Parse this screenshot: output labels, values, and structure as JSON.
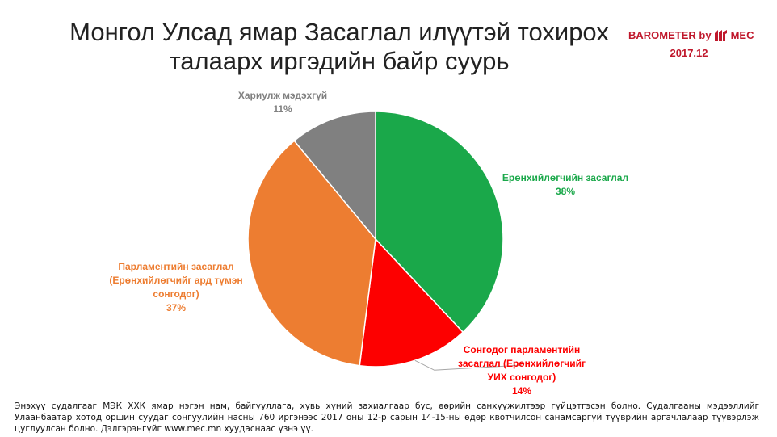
{
  "title": {
    "line1": "Монгол Улсад ямар Засаглал илүүтэй тохирох",
    "line2": "талаарх иргэдийн байр суурь"
  },
  "brand": {
    "name": "BAROMETER by",
    "logo_text": "MEC",
    "date": "2017.12",
    "color": "#c0182c"
  },
  "chart_data": {
    "type": "pie",
    "start": "12 o'clock, clockwise",
    "slices": [
      {
        "label_lines": [
          "Ерөнхийлөгчийн засаглал"
        ],
        "value": 38,
        "value_text": "38%",
        "color": "#1aa84a"
      },
      {
        "label_lines": [
          "Сонгодог парламентийн",
          "засаглал (Ерөнхийлөгчийг",
          "УИХ сонгодог)"
        ],
        "value": 14,
        "value_text": "14%",
        "color": "#fd0000"
      },
      {
        "label_lines": [
          "Парламентийн засаглал",
          "(Ерөнхийлөгчийг ард түмэн",
          "сонгодог)"
        ],
        "value": 37,
        "value_text": "37%",
        "color": "#ed7d31"
      },
      {
        "label_lines": [
          "Хариулж мэдэхгүй"
        ],
        "value": 11,
        "value_text": "11%",
        "color": "#808080"
      }
    ]
  },
  "footnote": "Энэхүү судалгааг МЭК ХХК ямар нэгэн нам, байгууллага, хувь хүний захиалгаар бус, өөрийн санхүүжилтээр гүйцэтгэсэн болно. Судалгааны мэдээллийг Улаанбаатар хотод оршин суудаг сонгуулийн насны 760 иргэнээс 2017 оны 12-р сарын 14-15-ны өдөр квотчилсон санамсаргүй түүврийн аргачлалаар түүвэрлэж цуглуулсан болно. Дэлгэрэнгүйг www.mec.mn хуудаснаас үзнэ үү."
}
